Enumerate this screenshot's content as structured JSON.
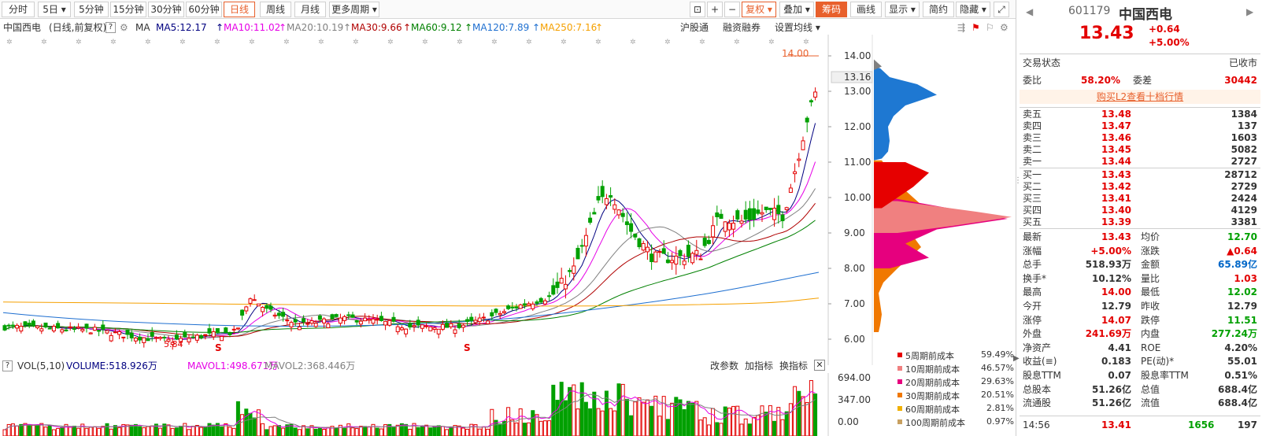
{
  "toolbar": {
    "periods": [
      "分时",
      "5日",
      "5分钟",
      "15分钟",
      "30分钟",
      "60分钟",
      "日线",
      "周线",
      "月线",
      "更多周期"
    ],
    "icons": [
      "lock-icon",
      "plus-icon",
      "minus-icon"
    ],
    "actions": [
      "复权",
      "叠加",
      "筹码",
      "画线",
      "显示",
      "简约",
      "隐藏"
    ],
    "active_period": "日线"
  },
  "info": {
    "stock": "中国西电",
    "mode": "(日线,前复权)",
    "help": "?",
    "ma_label": "MA",
    "ma": [
      {
        "text": "MA5:12.17",
        "color": "#000080"
      },
      {
        "text": "MA10:11.02",
        "color": "#e600e6"
      },
      {
        "text": "MA20:10.19",
        "color": "#808080"
      },
      {
        "text": "MA30:9.66",
        "color": "#b00000"
      },
      {
        "text": "MA60:9.12",
        "color": "#008000"
      },
      {
        "text": "MA120:7.89",
        "color": "#1e6fd0"
      },
      {
        "text": "MA250:7.16",
        "color": "#f5a000"
      }
    ],
    "links": [
      "沪股通",
      "融资融券",
      "设置均线"
    ]
  },
  "price_axis": [
    "14.00",
    "13.00",
    "12.00",
    "11.00",
    "10.00",
    "9.00",
    "8.00",
    "7.00",
    "6.00"
  ],
  "last_price_tag": "13.16",
  "high_label": "14.00",
  "low_label": "5.84",
  "chip_legend": [
    {
      "label": "5周期前成本",
      "value": "59.49%",
      "color": "#e60000"
    },
    {
      "label": "10周期前成本",
      "value": "46.57%",
      "color": "#f08080"
    },
    {
      "label": "20周期前成本",
      "value": "29.63%",
      "color": "#e6007e"
    },
    {
      "label": "30周期前成本",
      "value": "20.51%",
      "color": "#f07800"
    },
    {
      "label": "60周期前成本",
      "value": "2.81%",
      "color": "#f0b000"
    },
    {
      "label": "100周期前成本",
      "value": "0.97%",
      "color": "#c8a060"
    }
  ],
  "vol_info": {
    "title": "VOL(5,10)",
    "volume": "VOLUME:518.926万",
    "mavol1": "MAVOL1:498.671万",
    "mavol2": "MAVOL2:368.446万",
    "links": [
      "改参数",
      "加指标",
      "换指标"
    ]
  },
  "vol_axis": [
    "694.00",
    "347.00",
    "0.00"
  ],
  "quote": {
    "code": "601179",
    "name": "中国西电",
    "price": "13.43",
    "change": "+0.64",
    "pct": "+5.00%",
    "status_label": "交易状态",
    "status": "已收市",
    "weibi_label": "委比",
    "weibi": "58.20%",
    "weicha_label": "委差",
    "weicha": "30442",
    "l2_link": "购买L2查看十档行情",
    "asks": [
      {
        "label": "卖五",
        "price": "13.48",
        "vol": "1384"
      },
      {
        "label": "卖四",
        "price": "13.47",
        "vol": "137"
      },
      {
        "label": "卖三",
        "price": "13.46",
        "vol": "1603"
      },
      {
        "label": "卖二",
        "price": "13.45",
        "vol": "5082"
      },
      {
        "label": "卖一",
        "price": "13.44",
        "vol": "2727"
      }
    ],
    "bids": [
      {
        "label": "买一",
        "price": "13.43",
        "vol": "28712"
      },
      {
        "label": "买二",
        "price": "13.42",
        "vol": "2729"
      },
      {
        "label": "买三",
        "price": "13.41",
        "vol": "2424"
      },
      {
        "label": "买四",
        "price": "13.40",
        "vol": "4129"
      },
      {
        "label": "买五",
        "price": "13.39",
        "vol": "3381"
      }
    ],
    "stats": [
      {
        "l": "最新",
        "lv": "13.43",
        "lc": "#e30000",
        "r": "均价",
        "rv": "12.70",
        "rc": "#00a000"
      },
      {
        "l": "涨幅",
        "lv": "+5.00%",
        "lc": "#e30000",
        "r": "涨跌",
        "rv": "▲0.64",
        "rc": "#e30000"
      },
      {
        "l": "总手",
        "lv": "518.93万",
        "lc": "#333333",
        "r": "金额",
        "rv": "65.89亿",
        "rc": "#0067c8"
      },
      {
        "l": "换手*",
        "lv": "10.12%",
        "lc": "#333333",
        "r": "量比",
        "rv": "1.03",
        "rc": "#e30000"
      },
      {
        "l": "最高",
        "lv": "14.00",
        "lc": "#e30000",
        "r": "最低",
        "rv": "12.02",
        "rc": "#00a000"
      },
      {
        "l": "今开",
        "lv": "12.79",
        "lc": "#333333",
        "r": "昨收",
        "rv": "12.79",
        "rc": "#333333"
      },
      {
        "l": "涨停",
        "lv": "14.07",
        "lc": "#e30000",
        "r": "跌停",
        "rv": "11.51",
        "rc": "#00a000"
      },
      {
        "l": "外盘",
        "lv": "241.69万",
        "lc": "#e30000",
        "r": "内盘",
        "rv": "277.24万",
        "rc": "#00a000"
      },
      {
        "l": "净资产",
        "lv": "4.41",
        "lc": "#333333",
        "r": "ROE",
        "rv": "4.20%",
        "rc": "#333333"
      },
      {
        "l": "收益(≡)",
        "lv": "0.183",
        "lc": "#333333",
        "r": "PE(动)*",
        "rv": "55.01",
        "rc": "#333333"
      },
      {
        "l": "股息TTM",
        "lv": "0.07",
        "lc": "#333333",
        "r": "股息率TTM",
        "rv": "0.51%",
        "rc": "#333333"
      },
      {
        "l": "总股本",
        "lv": "51.26亿",
        "lc": "#333333",
        "r": "总值",
        "rv": "688.4亿",
        "rc": "#333333"
      },
      {
        "l": "流通股",
        "lv": "51.26亿",
        "lc": "#333333",
        "r": "流值",
        "rv": "688.4亿",
        "rc": "#333333"
      }
    ],
    "tick": {
      "time": "14:56",
      "price": "13.41",
      "vol": "1656",
      "extra": "197"
    }
  },
  "colors": {
    "up": "#e30000",
    "down": "#00a000",
    "accent": "#e8602c",
    "cost_blue": "#1e78d2"
  }
}
